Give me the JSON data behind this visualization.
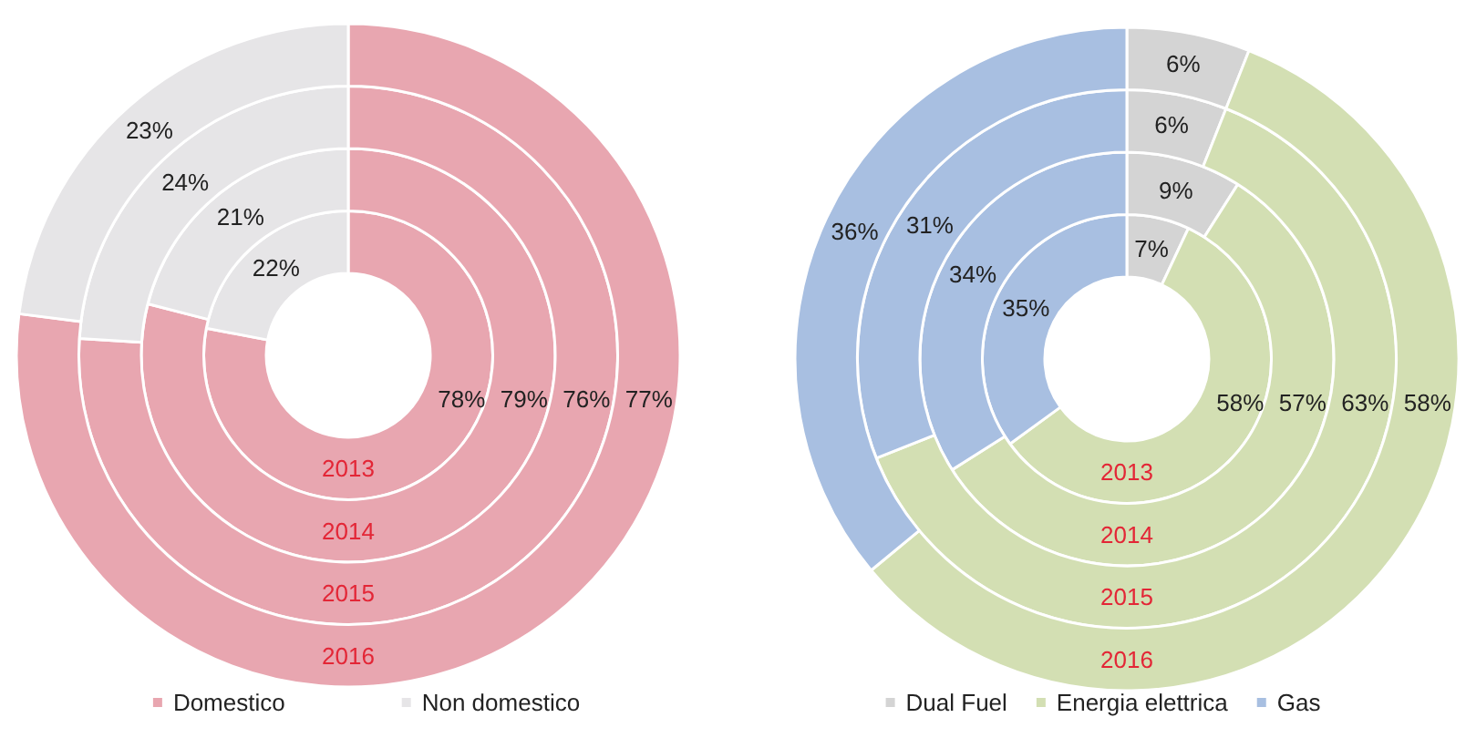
{
  "chart_data": [
    {
      "type": "donut",
      "categories": [
        "Domestico",
        "Non domestico"
      ],
      "colors": [
        "#e8a6b0",
        "#e6e5e7"
      ],
      "series": [
        {
          "name": "2013",
          "values": [
            78,
            22
          ],
          "value_labels": [
            "78%",
            "22%"
          ]
        },
        {
          "name": "2014",
          "values": [
            79,
            21
          ],
          "value_labels": [
            "79%",
            "21%"
          ]
        },
        {
          "name": "2015",
          "values": [
            76,
            24
          ],
          "value_labels": [
            "76%",
            "24%"
          ]
        },
        {
          "name": "2016",
          "values": [
            77,
            23
          ],
          "value_labels": [
            "77%",
            "23%"
          ]
        }
      ],
      "legend": "bottom"
    },
    {
      "type": "donut",
      "categories": [
        "Dual Fuel",
        "Energia elettrica",
        "Gas"
      ],
      "colors": [
        "#d4d4d4",
        "#d3dfb3",
        "#a8bfe1"
      ],
      "series": [
        {
          "name": "2013",
          "values": [
            7,
            58,
            35
          ],
          "value_labels": [
            "7%",
            "58%",
            "35%"
          ]
        },
        {
          "name": "2014",
          "values": [
            9,
            57,
            34
          ],
          "value_labels": [
            "9%",
            "57%",
            "34%"
          ]
        },
        {
          "name": "2015",
          "values": [
            6,
            63,
            31
          ],
          "value_labels": [
            "6%",
            "63%",
            "31%"
          ]
        },
        {
          "name": "2016",
          "values": [
            6,
            58,
            36
          ],
          "value_labels": [
            "6%",
            "58%",
            "36%"
          ]
        }
      ],
      "legend": "bottom"
    }
  ]
}
